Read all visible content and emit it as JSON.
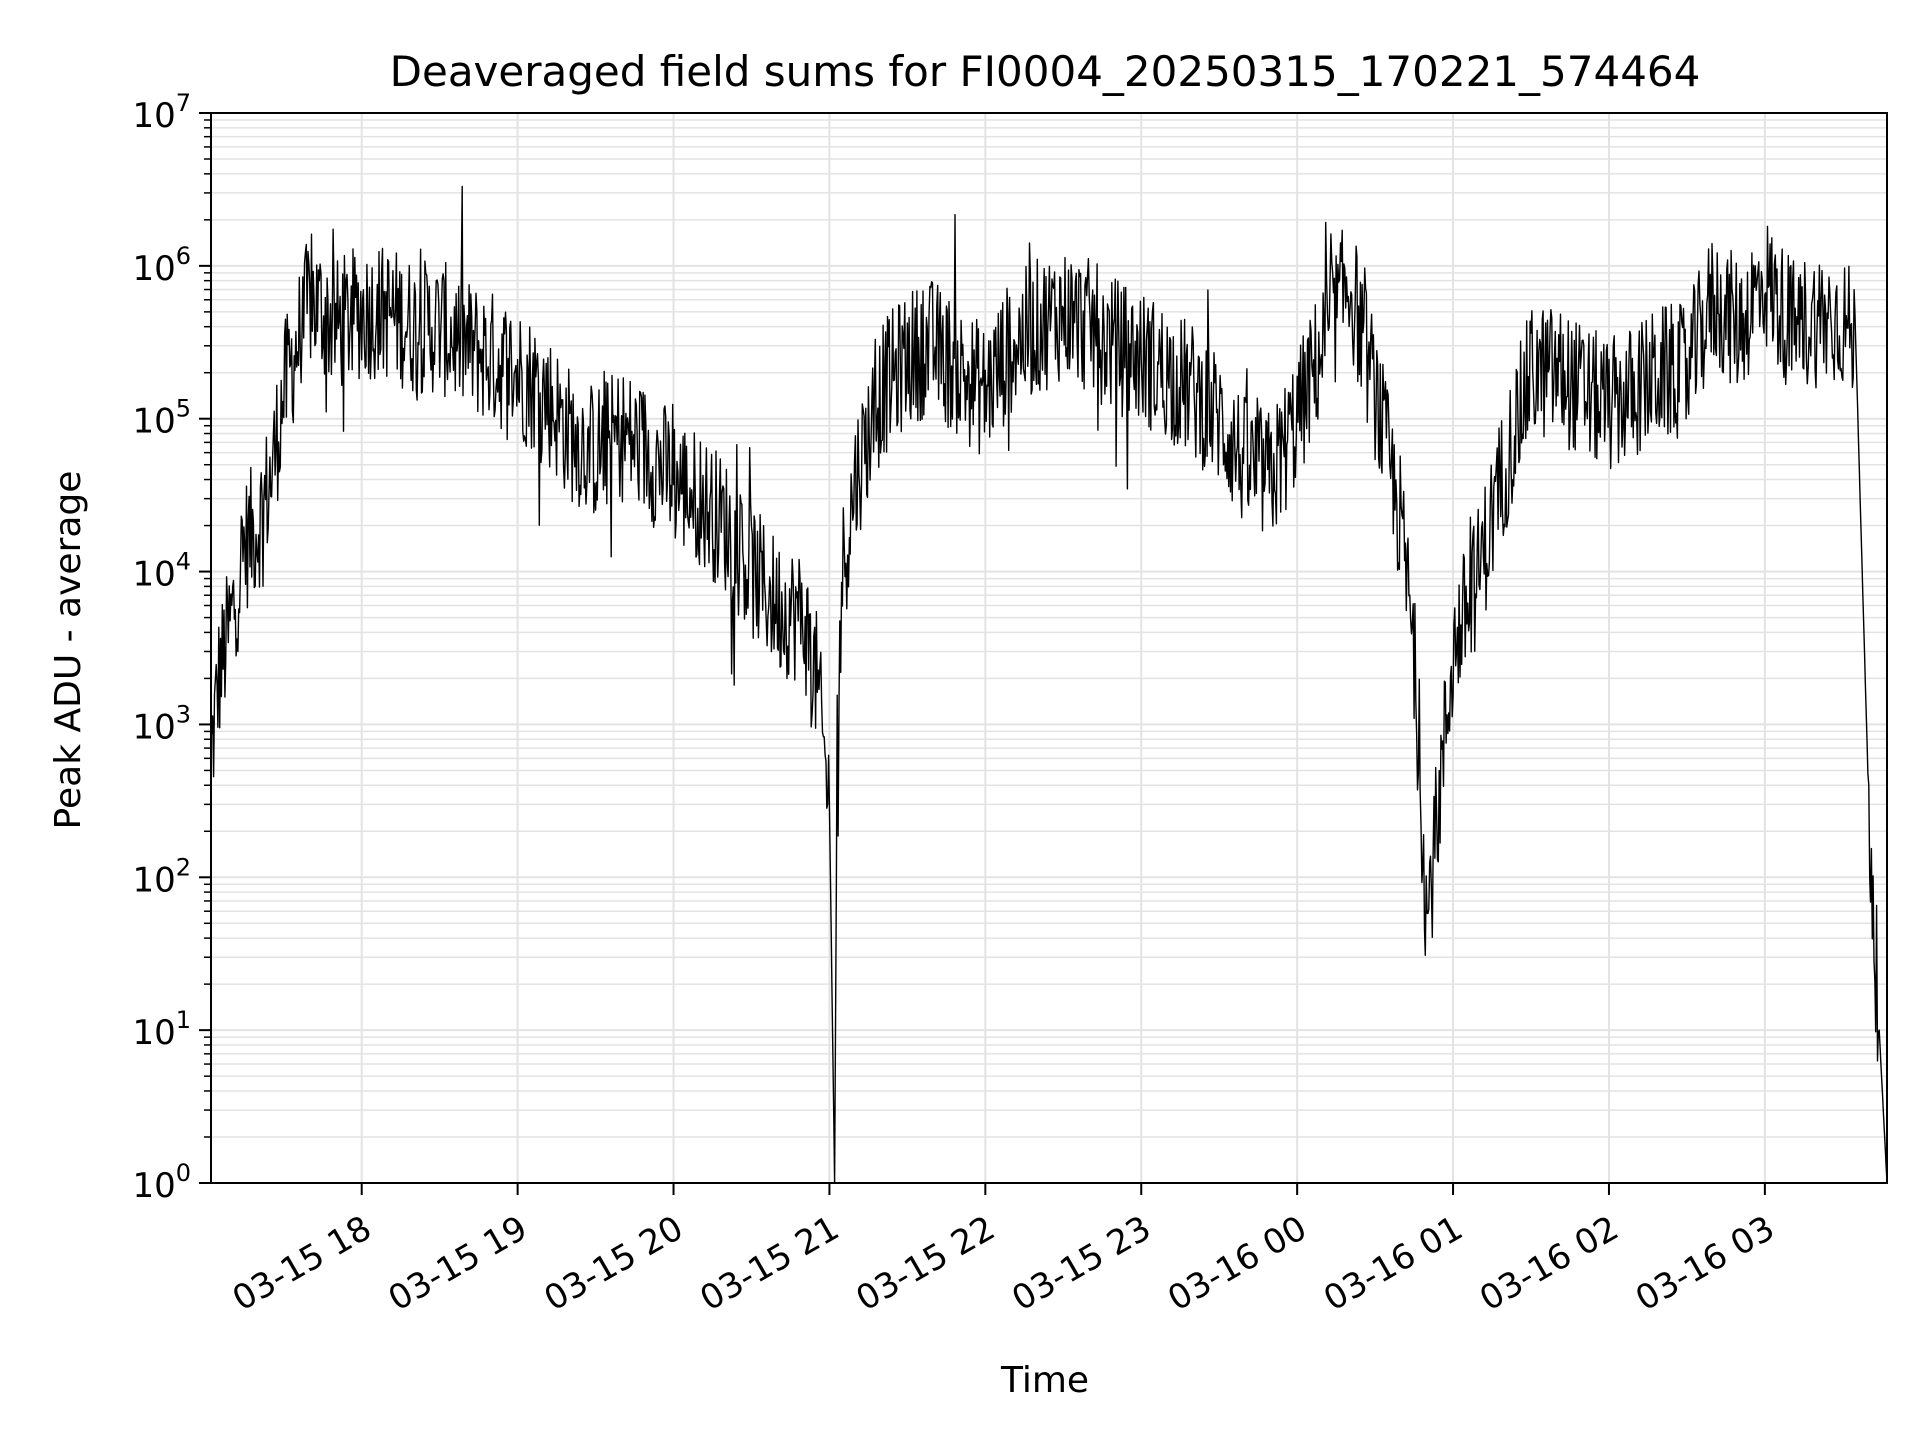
{
  "chart_data": {
    "type": "line",
    "title": "Deaveraged field sums for FI0004_20250315_170221_574464",
    "xlabel": "Time",
    "ylabel": "Peak ADU - average",
    "yscale": "log",
    "ylim": [
      1,
      10000000
    ],
    "xlim": [
      "2025-03-15 17:02",
      "2025-03-16 03:47"
    ],
    "x_ticks": [
      {
        "value": "2025-03-15 18:00",
        "label": "03-15 18"
      },
      {
        "value": "2025-03-15 19:00",
        "label": "03-15 19"
      },
      {
        "value": "2025-03-15 20:00",
        "label": "03-15 20"
      },
      {
        "value": "2025-03-15 21:00",
        "label": "03-15 21"
      },
      {
        "value": "2025-03-15 22:00",
        "label": "03-15 22"
      },
      {
        "value": "2025-03-15 23:00",
        "label": "03-15 23"
      },
      {
        "value": "2025-03-16 00:00",
        "label": "03-16 00"
      },
      {
        "value": "2025-03-16 01:00",
        "label": "03-16 01"
      },
      {
        "value": "2025-03-16 02:00",
        "label": "03-16 02"
      },
      {
        "value": "2025-03-16 03:00",
        "label": "03-16 03"
      }
    ],
    "y_ticks": [
      {
        "value": 1,
        "base": "10",
        "exp": "0"
      },
      {
        "value": 10,
        "base": "10",
        "exp": "1"
      },
      {
        "value": 100,
        "base": "10",
        "exp": "2"
      },
      {
        "value": 1000,
        "base": "10",
        "exp": "3"
      },
      {
        "value": 10000,
        "base": "10",
        "exp": "4"
      },
      {
        "value": 100000,
        "base": "10",
        "exp": "5"
      },
      {
        "value": 1000000,
        "base": "10",
        "exp": "6"
      },
      {
        "value": 10000000,
        "base": "10",
        "exp": "7"
      }
    ],
    "grid": true,
    "minor_grid": true,
    "line_color": "#000000",
    "grid_color": "#e3e3e3",
    "series": [
      {
        "x": [
          "2025-03-15 17:02",
          "2025-03-15 17:05",
          "2025-03-15 17:10",
          "2025-03-15 17:15",
          "2025-03-15 17:20",
          "2025-03-15 17:25",
          "2025-03-15 17:30",
          "2025-03-15 17:35",
          "2025-03-15 17:40",
          "2025-03-15 17:45",
          "2025-03-15 17:50",
          "2025-03-15 18:00",
          "2025-03-15 18:10",
          "2025-03-15 18:20",
          "2025-03-15 18:30",
          "2025-03-15 18:40",
          "2025-03-15 18:50",
          "2025-03-15 19:00",
          "2025-03-15 19:10",
          "2025-03-15 19:20",
          "2025-03-15 19:30",
          "2025-03-15 19:40",
          "2025-03-15 19:50",
          "2025-03-15 20:00",
          "2025-03-15 20:10",
          "2025-03-15 20:20",
          "2025-03-15 20:30",
          "2025-03-15 20:40",
          "2025-03-15 20:50",
          "2025-03-15 20:55",
          "2025-03-15 21:00",
          "2025-03-15 21:02",
          "2025-03-15 21:03",
          "2025-03-15 21:05",
          "2025-03-15 21:10",
          "2025-03-15 21:15",
          "2025-03-15 21:20",
          "2025-03-15 21:30",
          "2025-03-15 21:40",
          "2025-03-15 21:50",
          "2025-03-15 22:00",
          "2025-03-15 22:10",
          "2025-03-15 22:20",
          "2025-03-15 22:30",
          "2025-03-15 22:40",
          "2025-03-15 22:50",
          "2025-03-15 23:00",
          "2025-03-15 23:10",
          "2025-03-15 23:20",
          "2025-03-15 23:30",
          "2025-03-15 23:40",
          "2025-03-15 23:50",
          "2025-03-16 00:00",
          "2025-03-16 00:10",
          "2025-03-16 00:20",
          "2025-03-16 00:30",
          "2025-03-16 00:40",
          "2025-03-16 00:45",
          "2025-03-16 00:50",
          "2025-03-16 01:00",
          "2025-03-16 01:10",
          "2025-03-16 01:20",
          "2025-03-16 01:30",
          "2025-03-16 01:40",
          "2025-03-16 01:50",
          "2025-03-16 02:00",
          "2025-03-16 02:10",
          "2025-03-16 02:20",
          "2025-03-16 02:30",
          "2025-03-16 02:40",
          "2025-03-16 02:50",
          "2025-03-16 03:00",
          "2025-03-16 03:10",
          "2025-03-16 03:20",
          "2025-03-16 03:30",
          "2025-03-16 03:35",
          "2025-03-16 03:40",
          "2025-03-16 03:44",
          "2025-03-16 03:47"
        ],
        "values": [
          600,
          2000,
          5000,
          15000,
          20000,
          40000,
          150000,
          300000,
          600000,
          500000,
          400000,
          500000,
          500000,
          400000,
          400000,
          300000,
          250000,
          200000,
          150000,
          80000,
          60000,
          80000,
          60000,
          40000,
          30000,
          20000,
          10000,
          6000,
          5000,
          2000,
          300,
          1,
          1000,
          10000,
          40000,
          80000,
          150000,
          250000,
          300000,
          200000,
          150000,
          300000,
          400000,
          500000,
          400000,
          300000,
          250000,
          200000,
          150000,
          100000,
          50000,
          40000,
          100000,
          300000,
          800000,
          150000,
          20000,
          3000,
          50,
          3000,
          10000,
          50000,
          200000,
          200000,
          150000,
          120000,
          150000,
          200000,
          200000,
          600000,
          400000,
          800000,
          400000,
          450000,
          450000,
          300000,
          300,
          10,
          1
        ]
      }
    ]
  }
}
